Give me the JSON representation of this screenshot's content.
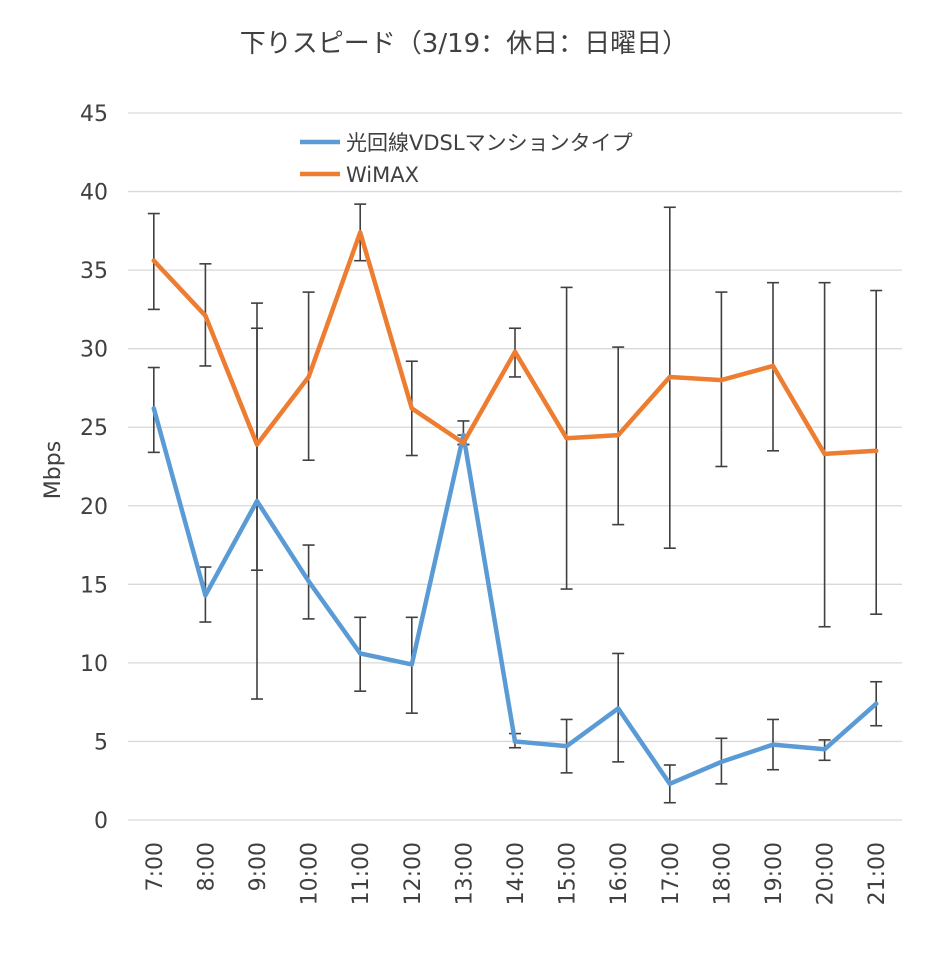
{
  "chart_data": {
    "type": "line",
    "title": "下りスピード（3/19：休日：日曜日）",
    "xlabel": "",
    "ylabel": "Mbps",
    "ylim": [
      0,
      45
    ],
    "yticks": [
      0,
      5,
      10,
      15,
      20,
      25,
      30,
      35,
      40,
      45
    ],
    "grid": true,
    "legend_position": "top",
    "categories": [
      "7:00",
      "8:00",
      "9:00",
      "10:00",
      "11:00",
      "12:00",
      "13:00",
      "14:00",
      "15:00",
      "16:00",
      "17:00",
      "18:00",
      "19:00",
      "20:00",
      "21:00"
    ],
    "series": [
      {
        "name": "光回線VDSLマンションタイプ",
        "color": "#5B9BD5",
        "values": [
          26.2,
          14.3,
          20.3,
          15.2,
          10.6,
          9.9,
          24.5,
          5.0,
          4.7,
          7.1,
          2.3,
          3.7,
          4.8,
          4.5,
          7.4
        ],
        "error_low": [
          23.4,
          12.6,
          7.7,
          12.8,
          8.2,
          6.8,
          23.9,
          4.6,
          3.0,
          3.7,
          1.1,
          2.3,
          3.2,
          3.8,
          6.0
        ],
        "error_high": [
          28.8,
          16.1,
          31.3,
          17.5,
          12.9,
          12.9,
          25.4,
          5.5,
          6.4,
          10.6,
          3.5,
          5.2,
          6.4,
          5.1,
          8.8
        ]
      },
      {
        "name": "WiMAX",
        "color": "#ED7D31",
        "values": [
          35.6,
          32.1,
          23.9,
          28.2,
          37.4,
          26.2,
          24.0,
          29.8,
          24.3,
          24.5,
          28.2,
          28.0,
          28.9,
          23.3,
          23.5
        ],
        "error_low": [
          32.5,
          28.9,
          15.9,
          22.9,
          35.6,
          23.2,
          23.9,
          28.2,
          14.7,
          18.8,
          17.3,
          22.5,
          23.5,
          12.3,
          13.1
        ],
        "error_high": [
          38.6,
          35.4,
          32.9,
          33.6,
          39.2,
          29.2,
          24.5,
          31.3,
          33.9,
          30.1,
          39.0,
          33.6,
          34.2,
          34.2,
          33.7
        ]
      }
    ]
  }
}
